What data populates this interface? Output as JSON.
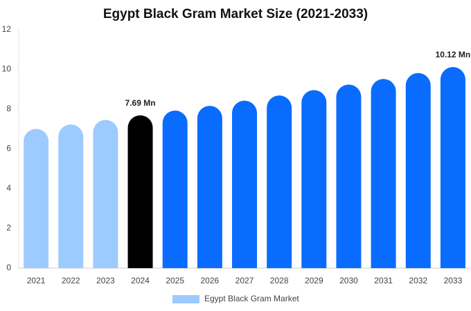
{
  "chart_data": {
    "type": "bar",
    "title": "Egypt Black Gram Market Size (2021-2033)",
    "categories": [
      "2021",
      "2022",
      "2023",
      "2024",
      "2025",
      "2026",
      "2027",
      "2028",
      "2029",
      "2030",
      "2031",
      "2032",
      "2033"
    ],
    "series": [
      {
        "name": "Egypt Black Gram Market",
        "color": "#9ecbff",
        "colors": [
          "#9ecbff",
          "#9ecbff",
          "#9ecbff",
          "#000000",
          "#0a6cff",
          "#0a6cff",
          "#0a6cff",
          "#0a6cff",
          "#0a6cff",
          "#0a6cff",
          "#0a6cff",
          "#0a6cff",
          "#0a6cff"
        ],
        "values": [
          7.01,
          7.23,
          7.46,
          7.69,
          7.93,
          8.17,
          8.43,
          8.69,
          8.96,
          9.24,
          9.52,
          9.82,
          10.12
        ],
        "value_labels": [
          null,
          null,
          null,
          "7.69 Mn",
          null,
          null,
          null,
          null,
          null,
          null,
          null,
          null,
          "10.12 Mn"
        ]
      }
    ],
    "ylim": [
      0,
      12
    ],
    "yticks": [
      0,
      2,
      4,
      6,
      8,
      10,
      12
    ],
    "legend": "bottom"
  }
}
